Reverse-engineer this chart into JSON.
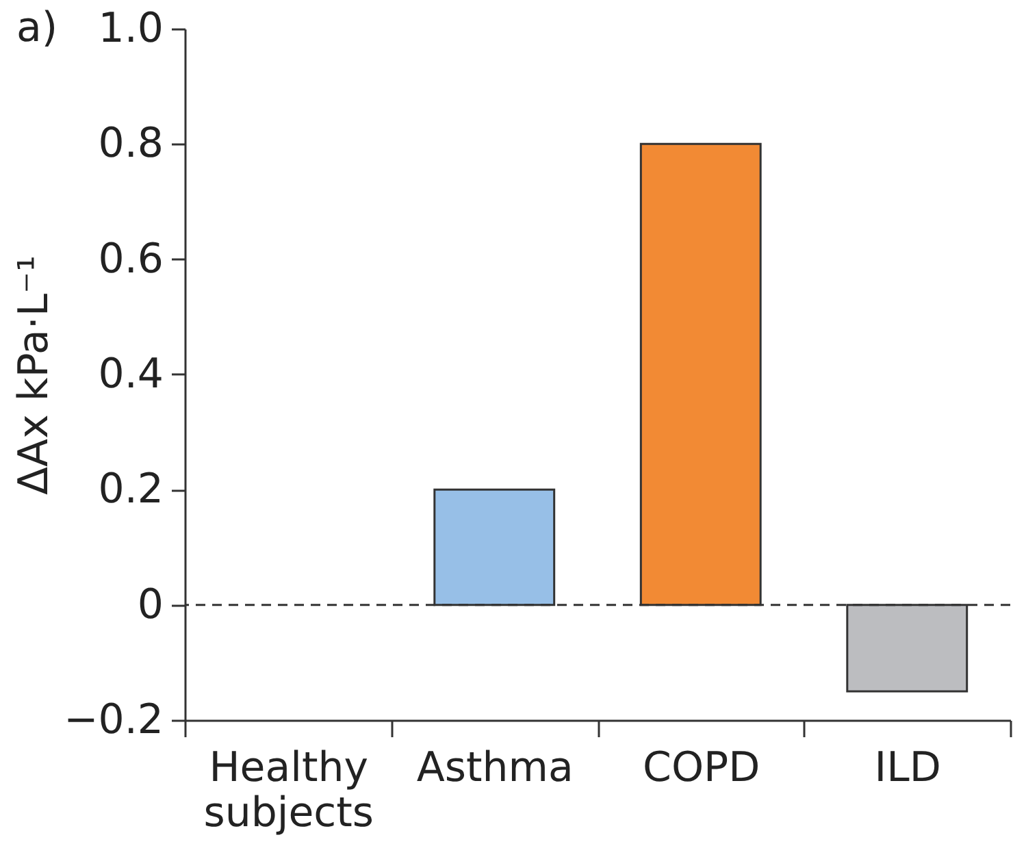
{
  "chart_data": {
    "type": "bar",
    "ylabel": "ΔAx kPa·L⁻¹",
    "annotations": [
      "a)"
    ],
    "categories": [
      "Healthy subjects",
      "Asthma",
      "COPD",
      "ILD"
    ],
    "values": [
      null,
      0.2,
      0.8,
      -0.15
    ],
    "colors": [
      "#97bfe7",
      "#97bfe7",
      "#f28a34",
      "#bcbdc0"
    ],
    "ylim": [
      -0.2,
      1.0
    ],
    "yticks": [
      {
        "value": -0.2,
        "label": "−0.2"
      },
      0,
      0.2,
      0.4,
      0.6,
      0.8,
      {
        "value": 1.0,
        "label": "1.0"
      }
    ],
    "ref_lines": [
      {
        "axis": "y",
        "value": 0,
        "line_style": "dashed",
        "color": "#333333"
      }
    ]
  }
}
